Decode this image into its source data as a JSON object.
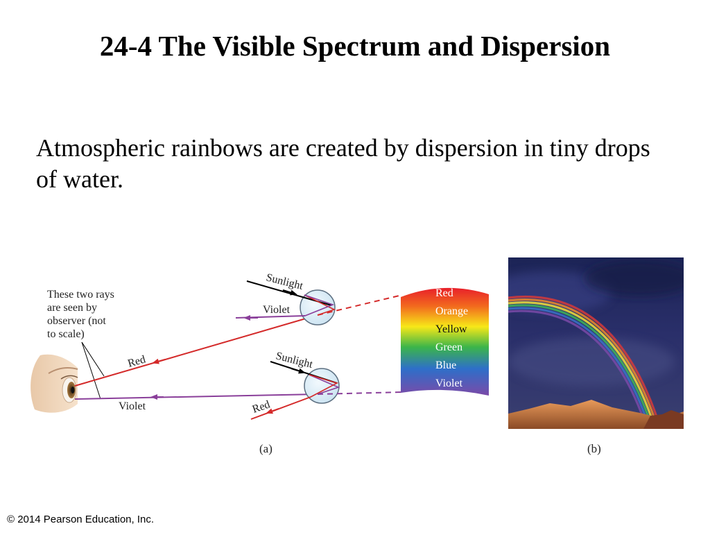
{
  "slide": {
    "title": "24-4 The Visible Spectrum and Dispersion",
    "body": "Atmospheric rainbows are created by dispersion in tiny drops of water.",
    "footer": "© 2014 Pearson Education, Inc."
  },
  "figure_a": {
    "note_lines": [
      "These two rays",
      "are seen by",
      "observer (not",
      "to scale)"
    ],
    "top_drop": {
      "sunlight": "Sunlight",
      "violet": "Violet"
    },
    "bottom_drop": {
      "sunlight": "Sunlight",
      "red": "Red"
    },
    "observer_rays": {
      "red": "Red",
      "violet": "Violet"
    },
    "spectrum_labels": [
      "Red",
      "Orange",
      "Yellow",
      "Green",
      "Blue",
      "Violet"
    ],
    "caption": "(a)"
  },
  "figure_b": {
    "caption": "(b)"
  },
  "colors": {
    "red_ray": "#d42a2a",
    "violet_ray": "#8a3f9a",
    "drop_fill": "#d8ecf6",
    "drop_stroke": "#5b6e80"
  }
}
